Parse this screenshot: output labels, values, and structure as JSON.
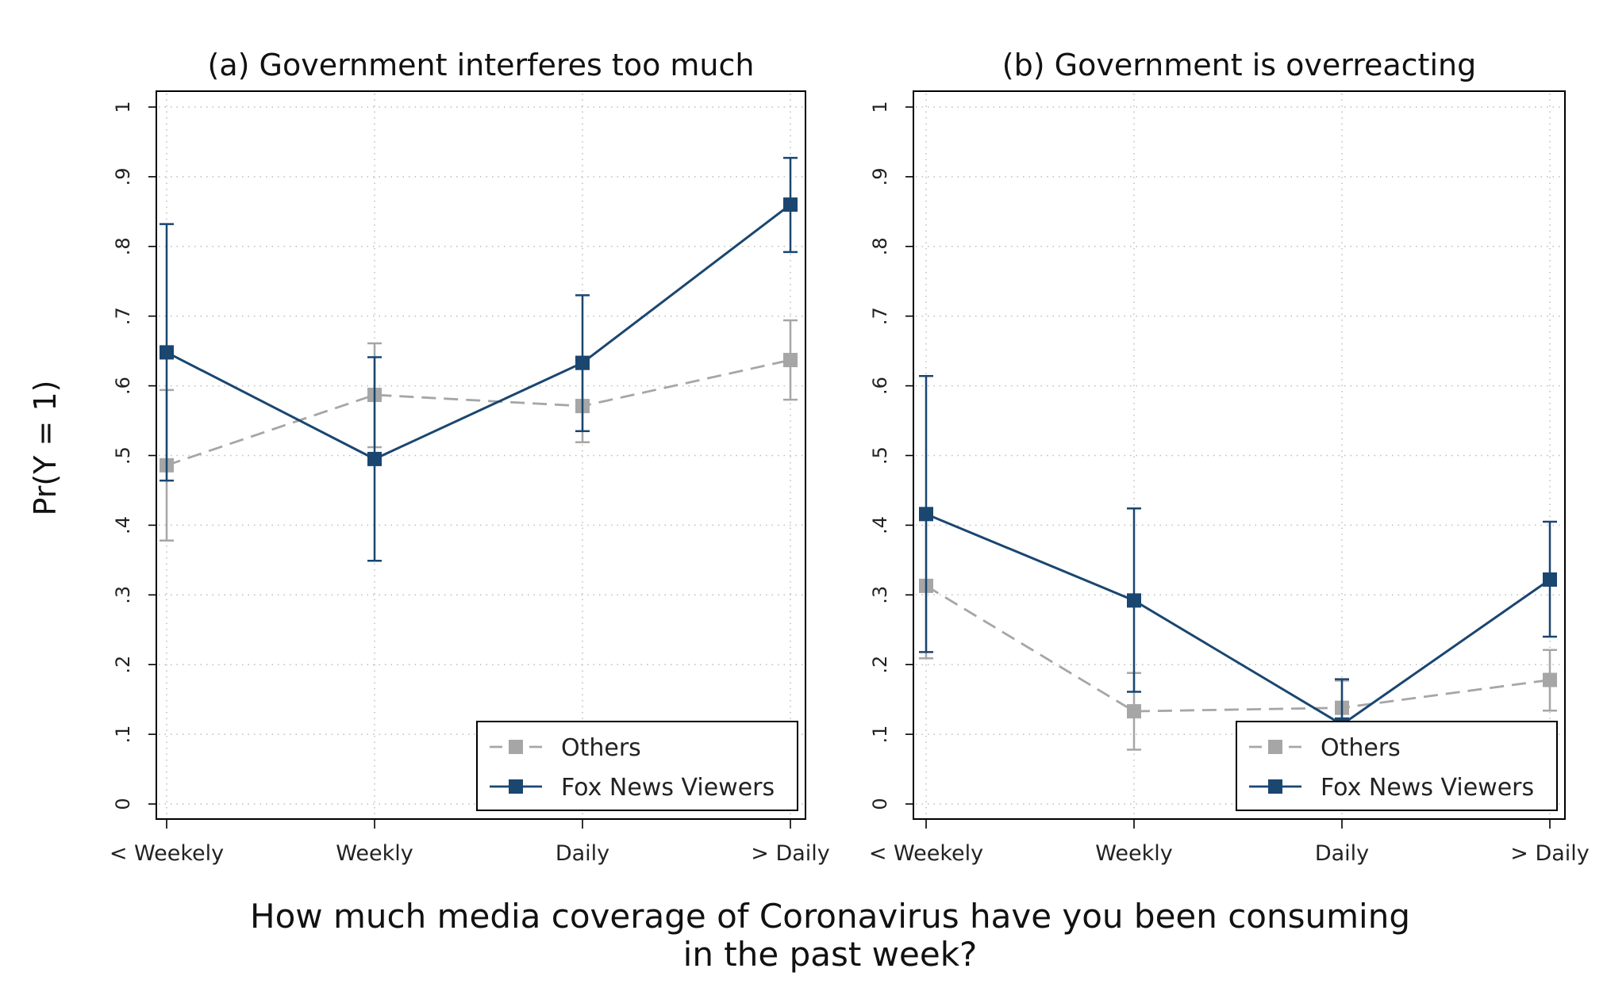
{
  "colors": {
    "others": "#a6a6a6",
    "fox": "#1a4670"
  },
  "figure": {
    "ylabel": "Pr(Y = 1)",
    "xlabel_line1": "How much media coverage of Coronavirus have you been consuming",
    "xlabel_line2": "in the past week?"
  },
  "chart_data": [
    {
      "type": "line",
      "title": "(a) Government interferes too much",
      "categories": [
        "< Weekely",
        "Weekly",
        "Daily",
        "> Daily"
      ],
      "ylim": [
        0,
        1
      ],
      "yticks": [
        "0",
        ".1",
        ".2",
        ".3",
        ".4",
        ".5",
        ".6",
        ".7",
        ".8",
        ".9",
        "1"
      ],
      "grid": true,
      "legend_position": "bottom-right",
      "series": [
        {
          "name": "Others",
          "style": "dashed",
          "color": "#a6a6a6",
          "values": [
            0.486,
            0.587,
            0.571,
            0.637
          ],
          "ci_low": [
            0.378,
            0.512,
            0.519,
            0.58
          ],
          "ci_high": [
            0.594,
            0.661,
            0.624,
            0.694
          ]
        },
        {
          "name": "Fox News Viewers",
          "style": "solid",
          "color": "#1a4670",
          "values": [
            0.648,
            0.495,
            0.633,
            0.86
          ],
          "ci_low": [
            0.464,
            0.349,
            0.535,
            0.792
          ],
          "ci_high": [
            0.832,
            0.641,
            0.73,
            0.927
          ]
        }
      ]
    },
    {
      "type": "line",
      "title": "(b) Government is overreacting",
      "categories": [
        "< Weekely",
        "Weekly",
        "Daily",
        "> Daily"
      ],
      "ylim": [
        0,
        1
      ],
      "yticks": [
        "0",
        ".1",
        ".2",
        ".3",
        ".4",
        ".5",
        ".6",
        ".7",
        ".8",
        ".9",
        "1"
      ],
      "grid": true,
      "legend_position": "bottom-right",
      "series": [
        {
          "name": "Others",
          "style": "dashed",
          "color": "#a6a6a6",
          "values": [
            0.313,
            0.133,
            0.138,
            0.178
          ],
          "ci_low": [
            0.209,
            0.078,
            0.099,
            0.134
          ],
          "ci_high": [
            0.418,
            0.188,
            0.177,
            0.221
          ]
        },
        {
          "name": "Fox News Viewers",
          "style": "solid",
          "color": "#1a4670",
          "values": [
            0.416,
            0.292,
            0.114,
            0.322
          ],
          "ci_low": [
            0.218,
            0.161,
            0.05,
            0.24
          ],
          "ci_high": [
            0.614,
            0.424,
            0.179,
            0.405
          ]
        }
      ]
    }
  ]
}
